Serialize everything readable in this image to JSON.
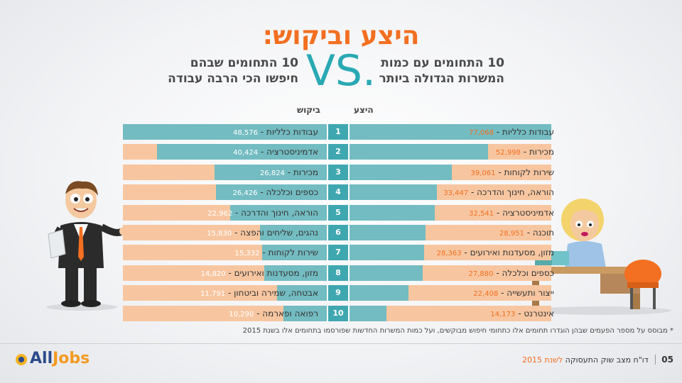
{
  "title": "היצע וביקוש:",
  "vs_text": "VS.",
  "subtitle_right": [
    "10 התחומים עם כמות",
    "המשרות הגדולה ביותר"
  ],
  "subtitle_left": [
    "10 התחומים שבהם",
    "חיפשו הכי הרבה עבודה"
  ],
  "column_headers": {
    "supply": "היצע",
    "demand": "ביקוש"
  },
  "colors": {
    "orange": "#f36f21",
    "teal": "#73bcc1",
    "teal_dark": "#3fa7b0",
    "peach": "#f7c6a0"
  },
  "chart_data": {
    "type": "bar",
    "ranks": [
      "1",
      "2",
      "3",
      "4",
      "5",
      "6",
      "7",
      "8",
      "9",
      "10"
    ],
    "supply": {
      "name": "היצע",
      "categories": [
        "עבודות כלליות",
        "מכירות",
        "שירות לקוחות",
        "הוראה, חינוך והדרכה",
        "אדמיניסטרציה",
        "תוכנה",
        "מזון, מסעדנות ואירועים",
        "כספים וכלכלה",
        "ייצור ותעשייה",
        "אינטרנט"
      ],
      "values": [
        77068,
        52998,
        39061,
        33447,
        32541,
        28951,
        28363,
        27880,
        22408,
        14173
      ],
      "value_labels": [
        "77,068",
        "52,998",
        "39,061",
        "33,447",
        "32,541",
        "28,951",
        "28,363",
        "27,880",
        "22,408",
        "14,173"
      ]
    },
    "demand": {
      "name": "ביקוש",
      "categories": [
        "עבודות כלליות",
        "אדמיניסטרציה",
        "מכירות",
        "כספים וכלכלה",
        "הוראה, חינוך והדרכה",
        "נהגים, שליחים והפצה",
        "שירות לקוחות",
        "מזון, מסעדנות ואירועים",
        "אבטחה, שמירה וביטחון",
        "רפואה ופארמה"
      ],
      "values": [
        48576,
        40424,
        26824,
        26426,
        22962,
        15830,
        15332,
        14820,
        11791,
        10290
      ],
      "value_labels": [
        "48,576",
        "40,424",
        "26,824",
        "26,426",
        "22,962",
        "15,830",
        "15,332",
        "14,820",
        "11,791",
        "10,290"
      ]
    }
  },
  "footnote": "* מבוסס על מספר הפעמים שבהן הוגדרו תחומים אלו כתחומי חיפוש מבוקשים, ועל כמות המשרות החדשות שפורסמו בתחומים אלו בשנת 2015",
  "footer": {
    "page": "05",
    "text": "דו\"ח מצב שוק התעסוקה ",
    "year": "לשנת 2015"
  },
  "logo": {
    "all": "All",
    "jobs": "Jobs"
  }
}
